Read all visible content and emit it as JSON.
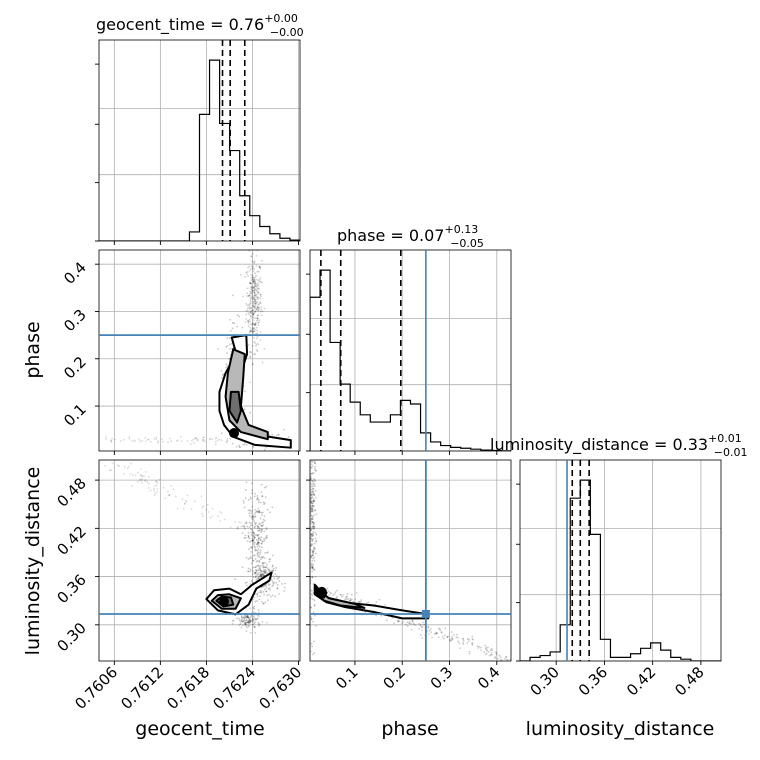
{
  "chart_data": {
    "type": "corner",
    "parameters": [
      {
        "name": "geocent_time",
        "axis_label": "geocent_time",
        "range": [
          0.7604,
          0.76302
        ],
        "ticks": [
          0.7606,
          0.7612,
          0.7618,
          0.7624,
          0.763
        ],
        "tick_labels": [
          "0.7606",
          "0.7612",
          "0.7618",
          "0.7624",
          "0.7630"
        ],
        "title_prefix": "geocent_time = 0.76",
        "title_sup": "+0.00",
        "title_sub": "−0.00",
        "quantiles": [
          0.76201,
          0.76211,
          0.7623
        ],
        "truth": null,
        "hist_edges_start": 0.7604,
        "hist_edges_step": 0.000131,
        "hist_counts": [
          0,
          0,
          0,
          0,
          0,
          0,
          0,
          0,
          0,
          0.05,
          0.7,
          1.0,
          0.65,
          0.5,
          0.25,
          0.14,
          0.08,
          0.04,
          0.015,
          0.005
        ]
      },
      {
        "name": "phase",
        "axis_label": "phase",
        "range": [
          0.005,
          0.43
        ],
        "ticks": [
          0.1,
          0.2,
          0.3,
          0.4
        ],
        "tick_labels": [
          "0.1",
          "0.2",
          "0.3",
          "0.4"
        ],
        "title_prefix": "phase = 0.07",
        "title_sup": "+0.13",
        "title_sub": "−0.05",
        "quantiles": [
          0.028,
          0.07,
          0.197
        ],
        "truth": 0.25,
        "hist_edges_start": 0.005,
        "hist_edges_step": 0.02125,
        "hist_counts": [
          0.85,
          1.0,
          0.6,
          0.37,
          0.27,
          0.2,
          0.16,
          0.16,
          0.2,
          0.28,
          0.26,
          0.1,
          0.05,
          0.03,
          0.02,
          0.015,
          0.01,
          0.005,
          0.003,
          0.001
        ]
      },
      {
        "name": "luminosity_distance",
        "axis_label": "luminosity_distance",
        "range": [
          0.255,
          0.505
        ],
        "ticks": [
          0.3,
          0.36,
          0.42,
          0.48
        ],
        "tick_labels": [
          "0.30",
          "0.36",
          "0.42",
          "0.48"
        ],
        "title_prefix": "luminosity_distance = 0.33",
        "title_sup": "+0.01",
        "title_sub": "−0.01",
        "quantiles": [
          0.32,
          0.33,
          0.341
        ],
        "truth": 0.3135,
        "hist_edges_start": 0.255,
        "hist_edges_step": 0.0125,
        "hist_counts": [
          0,
          0.02,
          0.03,
          0.05,
          0.2,
          0.9,
          1.0,
          0.7,
          0.12,
          0.02,
          0.02,
          0.04,
          0.07,
          0.1,
          0.06,
          0.02,
          0.01,
          0,
          0,
          0
        ]
      }
    ],
    "y_tick_labels": {
      "phase": [
        "0.1",
        "0.2",
        "0.3",
        "0.4"
      ],
      "luminosity_distance": [
        "0.30",
        "0.36",
        "0.42",
        "0.48"
      ]
    },
    "truth_color": "#4682b4",
    "line_color": "#000000",
    "contour_fill": [
      "#ffffff",
      "#b8b8b8",
      "#6e6e6e"
    ],
    "scatter_color": "#000000",
    "grid": true,
    "contours": {
      "geocent_time_phase": [
        [
          [
            0.76213,
            0.245
          ],
          [
            0.76219,
            0.21
          ],
          [
            0.76205,
            0.17
          ],
          [
            0.76197,
            0.13
          ],
          [
            0.76197,
            0.09
          ],
          [
            0.76203,
            0.06
          ],
          [
            0.76215,
            0.035
          ],
          [
            0.76243,
            0.018
          ],
          [
            0.7629,
            0.012
          ],
          [
            0.7629,
            0.028
          ],
          [
            0.7625,
            0.038
          ],
          [
            0.76225,
            0.06
          ],
          [
            0.76218,
            0.1
          ],
          [
            0.76223,
            0.16
          ],
          [
            0.76233,
            0.21
          ],
          [
            0.76232,
            0.25
          ]
        ],
        [
          [
            0.76215,
            0.22
          ],
          [
            0.76208,
            0.17
          ],
          [
            0.76205,
            0.12
          ],
          [
            0.7621,
            0.07
          ],
          [
            0.76225,
            0.045
          ],
          [
            0.7626,
            0.03
          ],
          [
            0.7626,
            0.045
          ],
          [
            0.76235,
            0.06
          ],
          [
            0.76225,
            0.1
          ],
          [
            0.76228,
            0.16
          ],
          [
            0.7623,
            0.21
          ]
        ],
        [
          [
            0.76212,
            0.13
          ],
          [
            0.7621,
            0.09
          ],
          [
            0.7622,
            0.065
          ],
          [
            0.76225,
            0.09
          ],
          [
            0.76222,
            0.13
          ]
        ]
      ],
      "geocent_time_luminosity_distance": [
        [
          [
            0.7618,
            0.332
          ],
          [
            0.76195,
            0.318
          ],
          [
            0.76218,
            0.313
          ],
          [
            0.76235,
            0.325
          ],
          [
            0.76245,
            0.345
          ],
          [
            0.76262,
            0.355
          ],
          [
            0.76265,
            0.365
          ],
          [
            0.7624,
            0.35
          ],
          [
            0.76225,
            0.338
          ],
          [
            0.7621,
            0.345
          ],
          [
            0.7619,
            0.343
          ]
        ],
        [
          [
            0.76187,
            0.33
          ],
          [
            0.762,
            0.32
          ],
          [
            0.76218,
            0.32
          ],
          [
            0.76225,
            0.333
          ],
          [
            0.7621,
            0.338
          ],
          [
            0.76195,
            0.337
          ]
        ],
        [
          [
            0.76193,
            0.33
          ],
          [
            0.76202,
            0.323
          ],
          [
            0.76215,
            0.325
          ],
          [
            0.76212,
            0.334
          ],
          [
            0.762,
            0.335
          ]
        ]
      ],
      "phase_luminosity_distance": [
        [
          [
            0.015,
            0.35
          ],
          [
            0.04,
            0.334
          ],
          [
            0.09,
            0.327
          ],
          [
            0.14,
            0.324
          ],
          [
            0.2,
            0.318
          ],
          [
            0.255,
            0.313
          ],
          [
            0.255,
            0.308
          ],
          [
            0.2,
            0.308
          ],
          [
            0.14,
            0.316
          ],
          [
            0.08,
            0.322
          ],
          [
            0.04,
            0.328
          ],
          [
            0.015,
            0.338
          ]
        ],
        [
          [
            0.018,
            0.346
          ],
          [
            0.045,
            0.333
          ],
          [
            0.1,
            0.326
          ],
          [
            0.12,
            0.321
          ],
          [
            0.07,
            0.324
          ],
          [
            0.035,
            0.33
          ],
          [
            0.018,
            0.338
          ]
        ],
        [
          [
            0.02,
            0.344
          ],
          [
            0.04,
            0.34
          ],
          [
            0.035,
            0.334
          ],
          [
            0.02,
            0.336
          ]
        ]
      ]
    },
    "peak_points": {
      "geocent_time_phase": [
        0.76216,
        0.043
      ],
      "geocent_time_luminosity_distance": [
        0.76203,
        0.329
      ],
      "phase_luminosity_distance": [
        0.03,
        0.341
      ]
    }
  }
}
